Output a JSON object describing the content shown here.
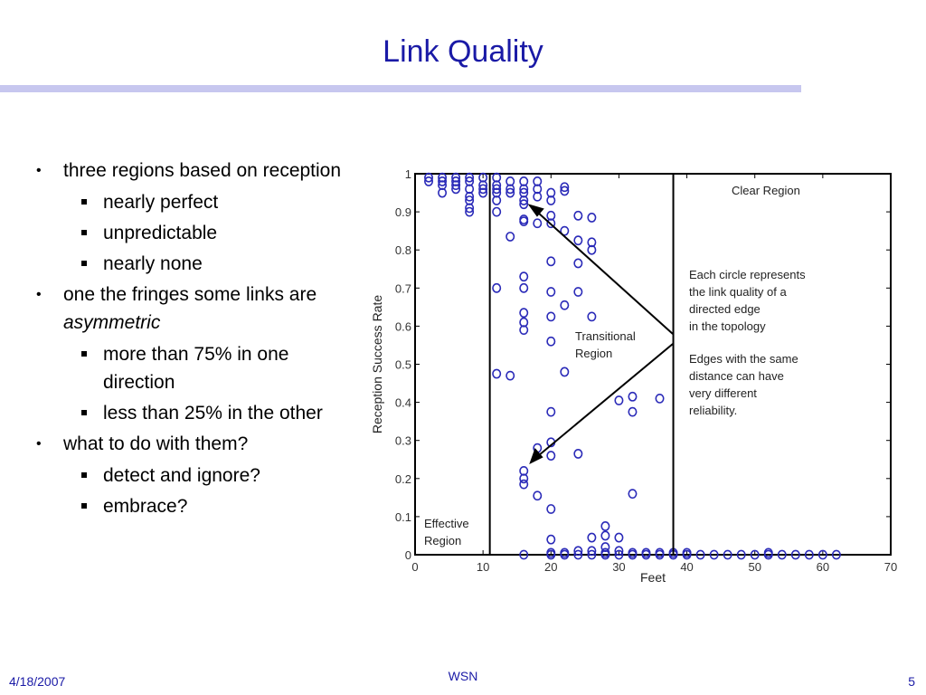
{
  "slide": {
    "title": "Link Quality"
  },
  "bullets": [
    {
      "text": "three regions based on reception",
      "sub": [
        "nearly perfect",
        "unpredictable",
        "nearly none"
      ]
    },
    {
      "text_pre": "one the fringes some links are ",
      "text_em": "asymmetric",
      "sub": [
        "more than 75% in one direction",
        "less than 25% in the other"
      ]
    },
    {
      "text": "what to do with them?",
      "sub": [
        "detect and ignore?",
        "embrace?"
      ]
    }
  ],
  "figure": {
    "region_labels": {
      "clear": "Clear Region",
      "transitional_line1": "Transitional",
      "transitional_line2": "Region",
      "effective_line1": "Effective",
      "effective_line2": "Region"
    },
    "annotation": [
      "Each circle represents",
      "the link quality of a",
      "directed edge",
      "in the topology",
      "",
      "Edges with the same",
      "distance can have",
      "very different",
      "reliability."
    ]
  },
  "chart_data": {
    "type": "scatter",
    "xlabel": "Feet",
    "ylabel": "Reception Success Rate",
    "xlim": [
      0,
      70
    ],
    "ylim": [
      0,
      1
    ],
    "xticks": [
      0,
      10,
      20,
      30,
      40,
      50,
      60,
      70
    ],
    "yticks": [
      0,
      0.1,
      0.2,
      0.3,
      0.4,
      0.5,
      0.6,
      0.7,
      0.8,
      0.9,
      1
    ],
    "region_boundaries_x": [
      11,
      38
    ],
    "marker_color": "#2a2ab8",
    "points": [
      [
        2,
        0.99
      ],
      [
        2,
        0.98
      ],
      [
        4,
        0.99
      ],
      [
        4,
        0.98
      ],
      [
        4,
        0.97
      ],
      [
        4,
        0.95
      ],
      [
        6,
        0.99
      ],
      [
        6,
        0.98
      ],
      [
        6,
        0.97
      ],
      [
        6,
        0.96
      ],
      [
        8,
        0.99
      ],
      [
        8,
        0.98
      ],
      [
        8,
        0.96
      ],
      [
        8,
        0.94
      ],
      [
        8,
        0.93
      ],
      [
        8,
        0.91
      ],
      [
        8,
        0.9
      ],
      [
        10,
        0.99
      ],
      [
        10,
        0.97
      ],
      [
        10,
        0.96
      ],
      [
        10,
        0.95
      ],
      [
        12,
        0.99
      ],
      [
        12,
        0.97
      ],
      [
        12,
        0.96
      ],
      [
        12,
        0.95
      ],
      [
        12,
        0.93
      ],
      [
        12,
        0.9
      ],
      [
        12,
        0.7
      ],
      [
        12,
        0.475
      ],
      [
        14,
        0.98
      ],
      [
        14,
        0.96
      ],
      [
        14,
        0.95
      ],
      [
        14,
        0.835
      ],
      [
        14,
        0.47
      ],
      [
        16,
        0.98
      ],
      [
        16,
        0.96
      ],
      [
        16,
        0.95
      ],
      [
        16,
        0.93
      ],
      [
        16,
        0.92
      ],
      [
        16,
        0.88
      ],
      [
        16,
        0.875
      ],
      [
        16,
        0.73
      ],
      [
        16,
        0.7
      ],
      [
        16,
        0.635
      ],
      [
        16,
        0.61
      ],
      [
        16,
        0.59
      ],
      [
        16,
        0.22
      ],
      [
        16,
        0.2
      ],
      [
        16,
        0.185
      ],
      [
        16,
        0
      ],
      [
        18,
        0.98
      ],
      [
        18,
        0.96
      ],
      [
        18,
        0.94
      ],
      [
        18,
        0.87
      ],
      [
        18,
        0.28
      ],
      [
        18,
        0.155
      ],
      [
        20,
        0.95
      ],
      [
        20,
        0.93
      ],
      [
        20,
        0.89
      ],
      [
        20,
        0.87
      ],
      [
        20,
        0.77
      ],
      [
        20,
        0.69
      ],
      [
        20,
        0.625
      ],
      [
        20,
        0.56
      ],
      [
        20,
        0.375
      ],
      [
        20,
        0.295
      ],
      [
        20,
        0.26
      ],
      [
        20,
        0.12
      ],
      [
        20,
        0.04
      ],
      [
        20,
        0.005
      ],
      [
        20,
        0
      ],
      [
        22,
        0.965
      ],
      [
        22,
        0.955
      ],
      [
        22,
        0.85
      ],
      [
        22,
        0.655
      ],
      [
        22,
        0.48
      ],
      [
        22,
        0.005
      ],
      [
        22,
        0
      ],
      [
        24,
        0.89
      ],
      [
        24,
        0.825
      ],
      [
        24,
        0.765
      ],
      [
        24,
        0.69
      ],
      [
        24,
        0.265
      ],
      [
        24,
        0.01
      ],
      [
        24,
        0
      ],
      [
        26,
        0.885
      ],
      [
        26,
        0.82
      ],
      [
        26,
        0.8
      ],
      [
        26,
        0.625
      ],
      [
        26,
        0.045
      ],
      [
        26,
        0.01
      ],
      [
        26,
        0
      ],
      [
        28,
        0.075
      ],
      [
        28,
        0.05
      ],
      [
        28,
        0.02
      ],
      [
        28,
        0.005
      ],
      [
        28,
        0
      ],
      [
        30,
        0.405
      ],
      [
        30,
        0.045
      ],
      [
        30,
        0.01
      ],
      [
        30,
        0
      ],
      [
        32,
        0.415
      ],
      [
        32,
        0.375
      ],
      [
        32,
        0.16
      ],
      [
        32,
        0.005
      ],
      [
        32,
        0
      ],
      [
        34,
        0.005
      ],
      [
        34,
        0
      ],
      [
        36,
        0.41
      ],
      [
        36,
        0.005
      ],
      [
        36,
        0
      ],
      [
        38,
        0.005
      ],
      [
        38,
        0
      ],
      [
        40,
        0.005
      ],
      [
        40,
        0
      ],
      [
        42,
        0
      ],
      [
        44,
        0
      ],
      [
        46,
        0
      ],
      [
        48,
        0
      ],
      [
        50,
        0
      ],
      [
        52,
        0.005
      ],
      [
        52,
        0
      ],
      [
        54,
        0
      ],
      [
        56,
        0
      ],
      [
        58,
        0
      ],
      [
        60,
        0
      ],
      [
        62,
        0
      ]
    ]
  },
  "footer": {
    "date": "4/18/2007",
    "center": "WSN",
    "page": "5"
  }
}
